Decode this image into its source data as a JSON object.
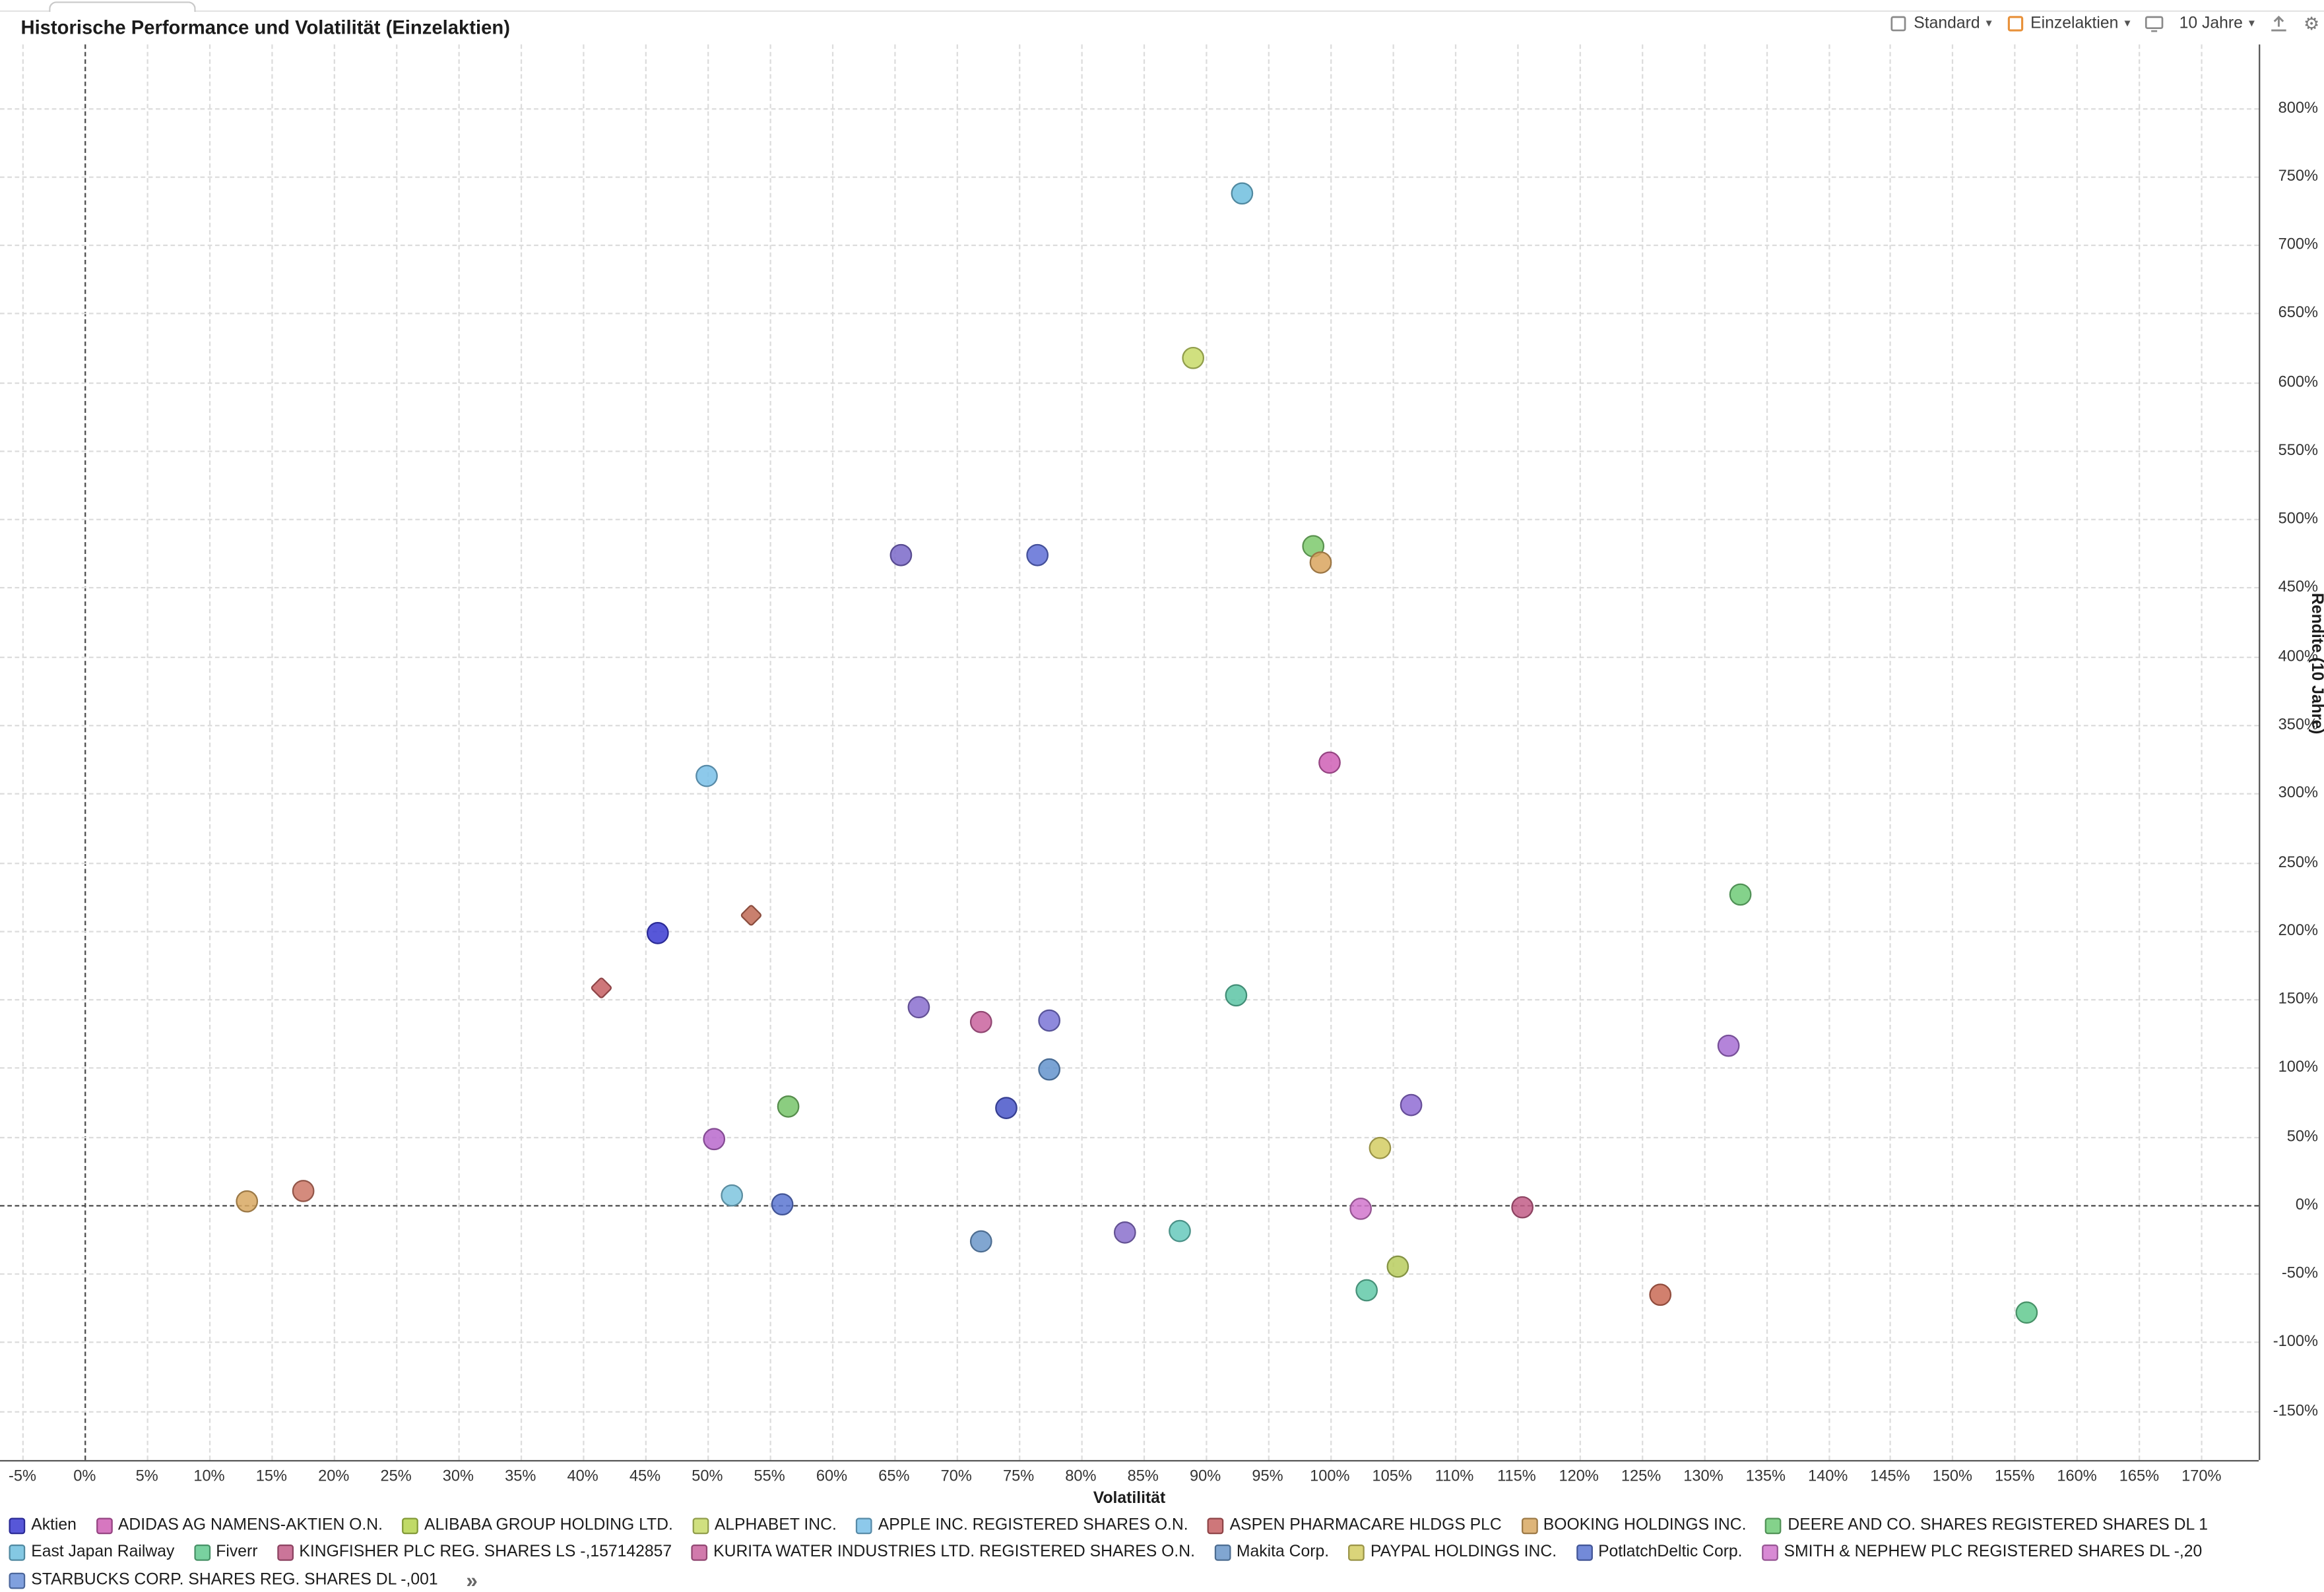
{
  "topbar": {
    "title": "Historische Performance und Volatilität (Einzelaktien)",
    "controls": {
      "standard": {
        "label": "Standard"
      },
      "einzelaktien": {
        "label": "Einzelaktien"
      },
      "zeitraum": {
        "label": "10 Jahre"
      }
    }
  },
  "icons": {
    "caret": "▾",
    "more": "»",
    "gear": "⚙"
  },
  "chart_data": {
    "type": "scatter",
    "title": "Historische Performance und Volatilität (Einzelaktien)",
    "xlabel": "Volatilität",
    "ylabel": "Rendite (10 Jahre)",
    "x_ticks": {
      "min": -5,
      "max": 170,
      "step": 5,
      "suffix": "%"
    },
    "y_ticks": {
      "min": -150,
      "max": 800,
      "step": 50,
      "suffix": "%"
    },
    "xlim": [
      -6.8,
      174.6
    ],
    "ylim": [
      -186,
      846
    ],
    "grid": true,
    "y_axis_side": "right",
    "legend_position": "bottom",
    "points": [
      {
        "x": 93,
        "y": 737,
        "color": "#6fbede",
        "shape": "circle"
      },
      {
        "x": 89,
        "y": 617,
        "color": "#c8da68",
        "shape": "circle"
      },
      {
        "x": 65.5,
        "y": 474,
        "color": "#7a68c9",
        "shape": "circle"
      },
      {
        "x": 76.5,
        "y": 474,
        "color": "#5f6fd6",
        "shape": "circle"
      },
      {
        "x": 98.7,
        "y": 480,
        "color": "#7cc96c",
        "shape": "circle"
      },
      {
        "x": 99.3,
        "y": 468,
        "color": "#d9a45e",
        "shape": "circle"
      },
      {
        "x": 100,
        "y": 322,
        "color": "#cf5fb5",
        "shape": "circle"
      },
      {
        "x": 50,
        "y": 313,
        "color": "#79bfe8",
        "shape": "circle"
      },
      {
        "x": 53.5,
        "y": 211,
        "color": "#bf6a55",
        "shape": "diamond"
      },
      {
        "x": 46,
        "y": 198,
        "color": "#3a3ad1",
        "shape": "circle"
      },
      {
        "x": 41.5,
        "y": 158,
        "color": "#c55f63",
        "shape": "diamond"
      },
      {
        "x": 92.5,
        "y": 153,
        "color": "#5cc4a4",
        "shape": "circle"
      },
      {
        "x": 67,
        "y": 144,
        "color": "#8a6fcf",
        "shape": "circle"
      },
      {
        "x": 72,
        "y": 133,
        "color": "#c9639e",
        "shape": "circle"
      },
      {
        "x": 77.5,
        "y": 134,
        "color": "#7a74d6",
        "shape": "circle"
      },
      {
        "x": 133,
        "y": 226,
        "color": "#6fca77",
        "shape": "circle"
      },
      {
        "x": 132,
        "y": 116,
        "color": "#a76fd4",
        "shape": "circle"
      },
      {
        "x": 77.5,
        "y": 99,
        "color": "#6393cc",
        "shape": "circle"
      },
      {
        "x": 74,
        "y": 71,
        "color": "#4956c9",
        "shape": "circle"
      },
      {
        "x": 56.5,
        "y": 72,
        "color": "#77c46a",
        "shape": "circle"
      },
      {
        "x": 50.5,
        "y": 48,
        "color": "#b868cc",
        "shape": "circle"
      },
      {
        "x": 106.5,
        "y": 73,
        "color": "#8f6cd4",
        "shape": "circle"
      },
      {
        "x": 104,
        "y": 42,
        "color": "#d4cc63",
        "shape": "circle"
      },
      {
        "x": 13,
        "y": 3,
        "color": "#d8a861",
        "shape": "circle"
      },
      {
        "x": 17.5,
        "y": 10,
        "color": "#cc7766",
        "shape": "circle"
      },
      {
        "x": 52,
        "y": 7,
        "color": "#7ec4de",
        "shape": "circle"
      },
      {
        "x": 56,
        "y": 0,
        "color": "#5b76d1",
        "shape": "circle"
      },
      {
        "x": 102.5,
        "y": -3,
        "color": "#d176cc",
        "shape": "circle"
      },
      {
        "x": 115.5,
        "y": -2,
        "color": "#c25d87",
        "shape": "circle"
      },
      {
        "x": 72,
        "y": -27,
        "color": "#6b97c9",
        "shape": "circle"
      },
      {
        "x": 83.5,
        "y": -20,
        "color": "#8a70cc",
        "shape": "circle"
      },
      {
        "x": 88,
        "y": -19,
        "color": "#66c9bc",
        "shape": "circle"
      },
      {
        "x": 105.5,
        "y": -45,
        "color": "#b8cc5e",
        "shape": "circle"
      },
      {
        "x": 103,
        "y": -62,
        "color": "#62c9a8",
        "shape": "circle"
      },
      {
        "x": 126.5,
        "y": -65,
        "color": "#c96a55",
        "shape": "circle"
      },
      {
        "x": 156,
        "y": -78,
        "color": "#62c98f",
        "shape": "circle"
      }
    ],
    "legend": [
      {
        "label": "Aktien",
        "color": "#3a3ad1"
      },
      {
        "label": "ADIDAS AG NAMENS-AKTIEN O.N.",
        "color": "#cf5fb5"
      },
      {
        "label": "ALIBABA GROUP HOLDING LTD.",
        "color": "#b5d44c"
      },
      {
        "label": "ALPHABET INC.",
        "color": "#c8da68"
      },
      {
        "label": "APPLE INC. REGISTERED SHARES O.N.",
        "color": "#79bfe8"
      },
      {
        "label": "ASPEN PHARMACARE HLDGS PLC",
        "color": "#c55f63"
      },
      {
        "label": "BOOKING HOLDINGS INC.",
        "color": "#d8a861"
      },
      {
        "label": "DEERE AND CO. SHARES REGISTERED SHARES DL 1",
        "color": "#6fca77"
      },
      {
        "label": "East Japan Railway",
        "color": "#6fbede"
      },
      {
        "label": "Fiverr",
        "color": "#62c98f"
      },
      {
        "label": "KINGFISHER PLC REG. SHARES LS -,157142857",
        "color": "#c25d87"
      },
      {
        "label": "KURITA WATER INDUSTRIES LTD. REGISTERED SHARES O.N.",
        "color": "#c9639e"
      },
      {
        "label": "Makita Corp.",
        "color": "#6b97c9"
      },
      {
        "label": "PAYPAL HOLDINGS INC.",
        "color": "#d4cc63"
      },
      {
        "label": "PotlatchDeltic Corp.",
        "color": "#5b76d1"
      },
      {
        "label": "SMITH & NEPHEW PLC REGISTERED SHARES DL -,20",
        "color": "#d176cc"
      },
      {
        "label": "STARBUCKS CORP. SHARES REG. SHARES DL -,001",
        "color": "#6a8fd8"
      }
    ]
  }
}
